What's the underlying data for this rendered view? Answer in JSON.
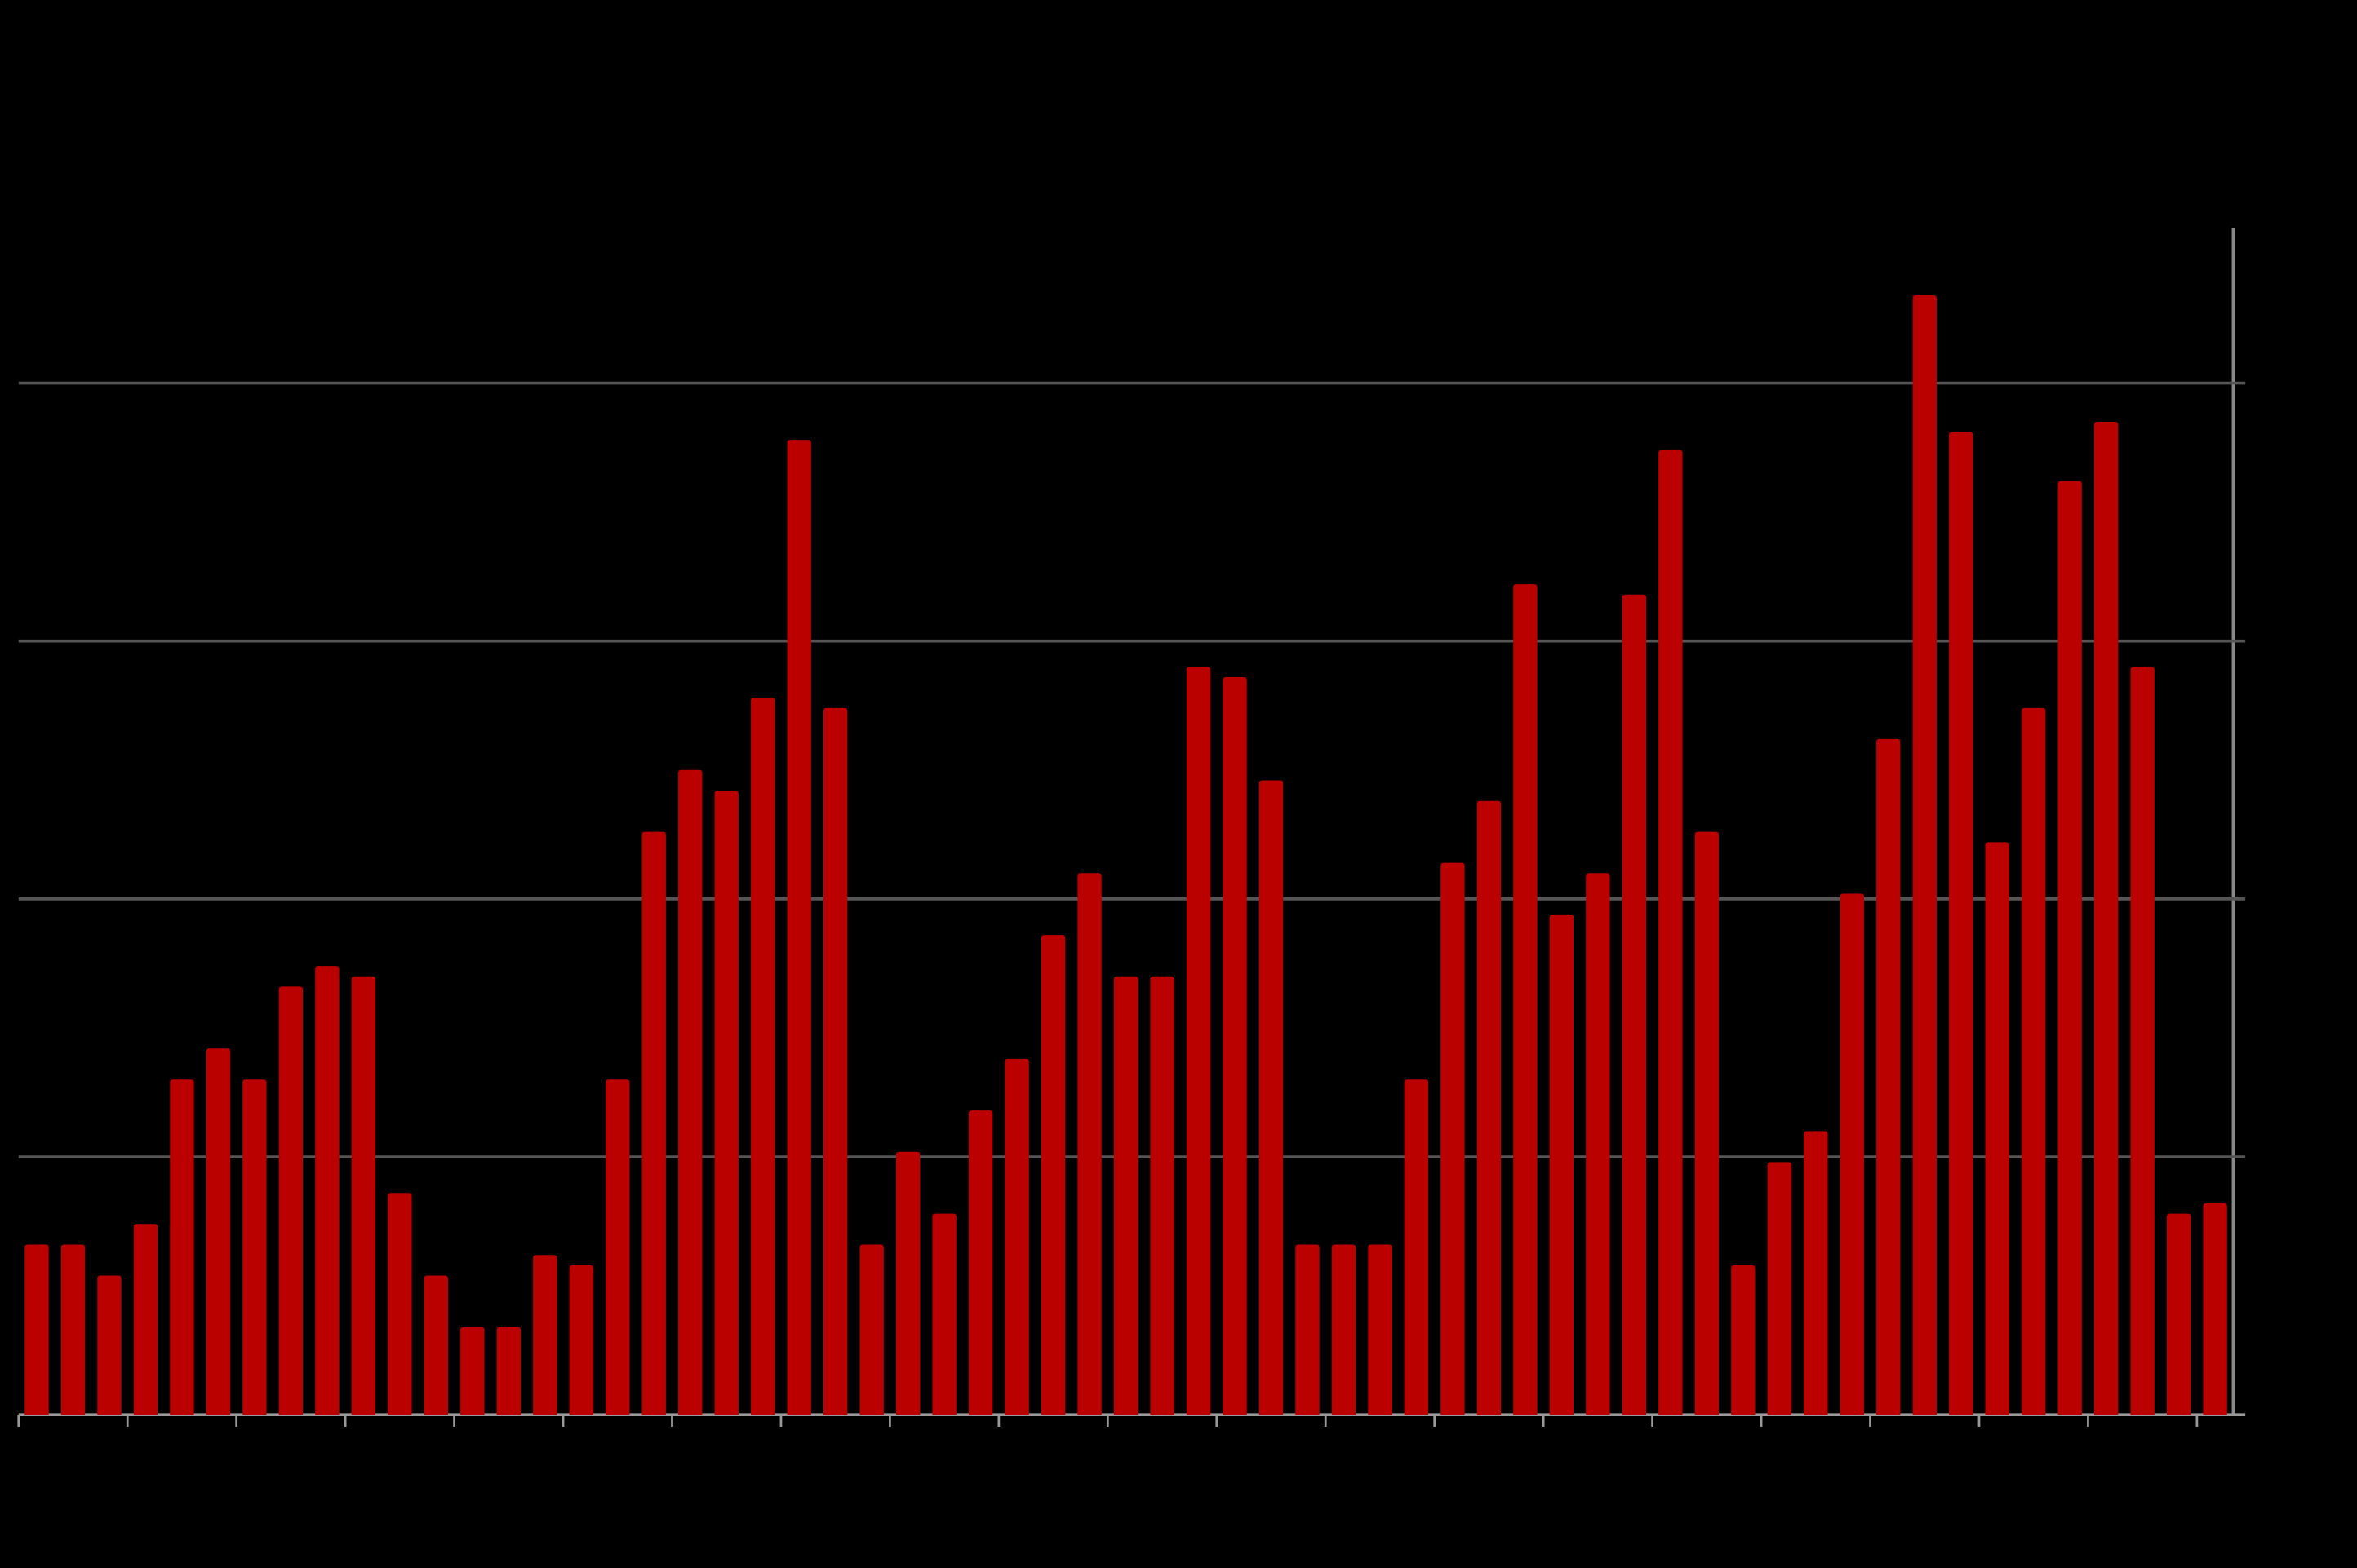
{
  "chart_data": {
    "type": "bar",
    "categories": [
      null,
      null,
      null,
      null,
      null,
      null,
      null,
      null,
      null,
      null,
      null,
      null,
      null,
      null,
      null,
      null,
      null,
      null,
      null,
      null,
      null,
      null,
      null,
      null,
      null,
      null,
      null,
      null,
      null,
      null,
      null,
      null,
      null,
      null,
      null,
      null,
      null,
      null,
      null,
      null,
      null,
      null,
      null,
      null,
      null,
      null,
      null,
      null,
      null,
      null,
      null,
      null,
      null,
      null,
      null,
      null,
      null,
      null,
      null,
      null,
      null
    ],
    "values": [
      0.66,
      0.66,
      0.54,
      0.74,
      1.3,
      1.42,
      1.3,
      1.66,
      1.74,
      1.7,
      0.86,
      0.54,
      0.34,
      0.34,
      0.62,
      0.58,
      1.3,
      2.26,
      2.5,
      2.42,
      2.78,
      3.78,
      2.74,
      0.66,
      1.02,
      0.78,
      1.18,
      1.38,
      1.86,
      2.1,
      1.7,
      1.7,
      2.9,
      2.86,
      2.46,
      0.66,
      0.66,
      0.66,
      1.3,
      2.14,
      2.38,
      3.22,
      1.94,
      2.1,
      3.18,
      3.74,
      2.26,
      0.58,
      0.98,
      1.1,
      2.02,
      2.62,
      4.34,
      3.81,
      2.22,
      2.74,
      3.62,
      3.85,
      2.9,
      0.78,
      0.82
    ],
    "color": "#bb0000",
    "ylim": [
      0,
      4.6
    ],
    "yticks": [
      0,
      1,
      2,
      3,
      4
    ],
    "grid": true
  }
}
